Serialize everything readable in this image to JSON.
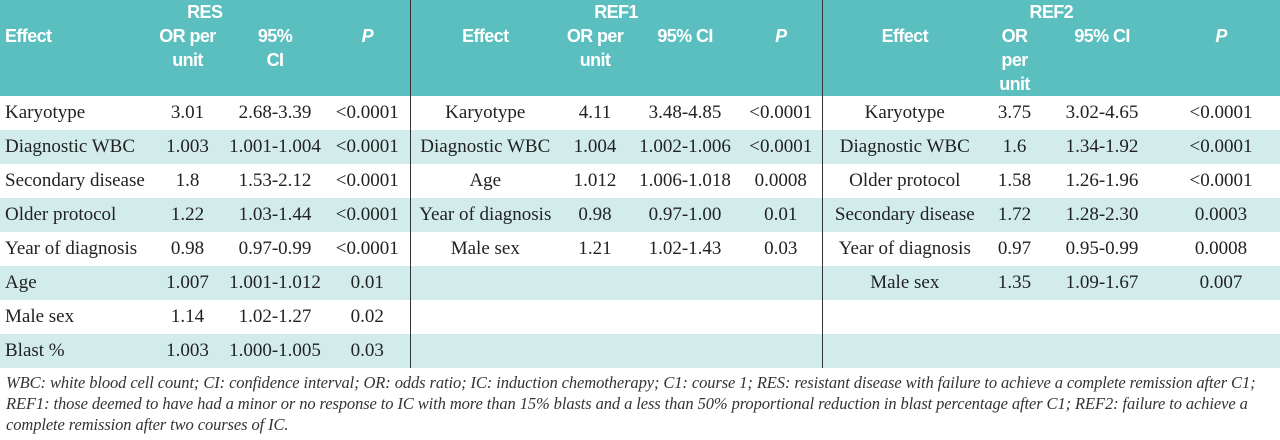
{
  "table": {
    "groups": [
      {
        "name": "RES",
        "columns": [
          "Effect",
          "OR per unit",
          "95% CI",
          "P"
        ],
        "rows": [
          [
            "Karyotype",
            "3.01",
            "2.68-3.39",
            "<0.0001"
          ],
          [
            "Diagnostic WBC",
            "1.003",
            "1.001-1.004",
            "<0.0001"
          ],
          [
            "Secondary disease",
            "1.8",
            "1.53-2.12",
            "<0.0001"
          ],
          [
            "Older protocol",
            "1.22",
            "1.03-1.44",
            "<0.0001"
          ],
          [
            "Year of diagnosis",
            "0.98",
            "0.97-0.99",
            "<0.0001"
          ],
          [
            "Age",
            "1.007",
            "1.001-1.012",
            "0.01"
          ],
          [
            "Male sex",
            "1.14",
            "1.02-1.27",
            "0.02"
          ],
          [
            "Blast %",
            "1.003",
            "1.000-1.005",
            "0.03"
          ]
        ]
      },
      {
        "name": "REF1",
        "columns": [
          "Effect",
          "OR per unit",
          "95% CI",
          "P"
        ],
        "rows": [
          [
            "Karyotype",
            "4.11",
            "3.48-4.85",
            "<0.0001"
          ],
          [
            "Diagnostic WBC",
            "1.004",
            "1.002-1.006",
            "<0.0001"
          ],
          [
            "Age",
            "1.012",
            "1.006-1.018",
            "0.0008"
          ],
          [
            "Year of diagnosis",
            "0.98",
            "0.97-1.00",
            "0.01"
          ],
          [
            "Male sex",
            "1.21",
            "1.02-1.43",
            "0.03"
          ]
        ]
      },
      {
        "name": "REF2",
        "columns": [
          "Effect",
          "OR per unit",
          "95% CI",
          "P"
        ],
        "rows": [
          [
            "Karyotype",
            "3.75",
            "3.02-4.65",
            "<0.0001"
          ],
          [
            "Diagnostic WBC",
            "1.6",
            "1.34-1.92",
            "<0.0001"
          ],
          [
            "Older protocol",
            "1.58",
            "1.26-1.96",
            "<0.0001"
          ],
          [
            "Secondary disease",
            "1.72",
            "1.28-2.30",
            "0.0003"
          ],
          [
            "Year of diagnosis",
            "0.97",
            "0.95-0.99",
            "0.0008"
          ],
          [
            "Male sex",
            "1.35",
            "1.09-1.67",
            "0.007"
          ]
        ]
      }
    ],
    "footnote": "WBC: white blood cell count; CI: confidence interval; OR: odds ratio; IC: induction chemotherapy; C1: course 1; RES: resistant disease with failure to achieve a complete remission after C1; REF1: those deemed to have had a minor or no response to IC with more than 15% blasts and a less than 50% proportional reduction in blast percentage after C1; REF2: failure to achieve a complete remission after two courses of IC."
  }
}
